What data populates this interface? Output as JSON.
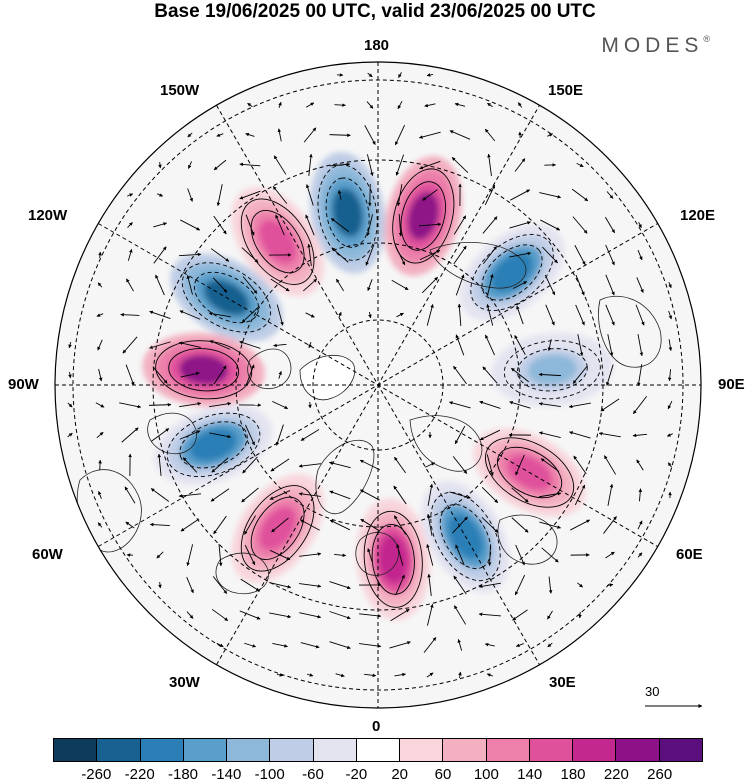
{
  "title": "Base 19/06/2025 00 UTC, valid 23/06/2025 00 UTC",
  "brand": "MODES",
  "brand_mark": "®",
  "longitude_labels": {
    "top": "180",
    "bottom": "0",
    "left": "90W",
    "right": "90E",
    "top_left_1": "150W",
    "top_left_2": "120W",
    "bottom_left_1": "60W",
    "bottom_left_2": "30W",
    "top_right_1": "150E",
    "top_right_2": "120E",
    "bottom_right_1": "60E",
    "bottom_right_2": "30E"
  },
  "reference_vector": "30",
  "colorbar": {
    "colors": [
      "#0e3a5c",
      "#17608f",
      "#2b7fb6",
      "#5a9fcb",
      "#8db8d9",
      "#bfcde6",
      "#e4e4f1",
      "#ffffff",
      "#f8d6dc",
      "#f3b0c1",
      "#ec80aa",
      "#e0519c",
      "#c2288e",
      "#8e1287",
      "#5b0f7c"
    ],
    "labels": [
      "-260",
      "-220",
      "-180",
      "-140",
      "-100",
      "-60",
      "-20",
      "20",
      "60",
      "100",
      "140",
      "180",
      "220",
      "260"
    ]
  },
  "anomaly_centers": [
    {
      "lon_label": "170W",
      "sign": "negative",
      "level": 220
    },
    {
      "lon_label": "165E",
      "sign": "positive",
      "level": 220
    },
    {
      "lon_label": "145W",
      "sign": "positive",
      "level": 140
    },
    {
      "lon_label": "130E",
      "sign": "negative",
      "level": 180
    },
    {
      "lon_label": "120W",
      "sign": "negative",
      "level": 220
    },
    {
      "lon_label": "95E",
      "sign": "negative",
      "level": 100
    },
    {
      "lon_label": "95W",
      "sign": "positive",
      "level": 220
    },
    {
      "lon_label": "70W",
      "sign": "negative",
      "level": 180
    },
    {
      "lon_label": "60E",
      "sign": "positive",
      "level": 140
    },
    {
      "lon_label": "35W",
      "sign": "positive",
      "level": 140
    },
    {
      "lon_label": "5E",
      "sign": "positive",
      "level": 180
    },
    {
      "lon_label": "30E",
      "sign": "negative",
      "level": 180
    }
  ]
}
